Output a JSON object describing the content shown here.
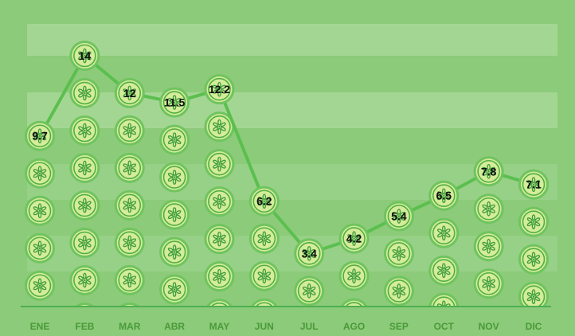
{
  "chart_data": {
    "type": "line",
    "categories": [
      "ENE",
      "FEB",
      "MAR",
      "ABR",
      "MAY",
      "JUN",
      "JUL",
      "AGO",
      "SEP",
      "OCT",
      "NOV",
      "DIC"
    ],
    "values": [
      9.7,
      14,
      12,
      11.5,
      12.2,
      6.2,
      3.4,
      4.2,
      5.4,
      6.5,
      7.8,
      7.1
    ],
    "data_labels": [
      "9.7",
      "14",
      "12",
      "11.5",
      "12.2",
      "6.2",
      "3.4",
      "4.2",
      "5.4",
      "6.5",
      "7.8",
      "7.1"
    ],
    "ylim": [
      0,
      16
    ],
    "marker": "cucumber-slice",
    "grid": true,
    "title": "",
    "xlabel": "",
    "ylabel": "",
    "colors": {
      "background": "#8ccb79",
      "band_light": "#a8d898",
      "band_mid": "#99d189",
      "line": "#5bbf4f",
      "slice_fill": "#d5ec9a",
      "slice_rim": "#6fc45f",
      "slice_ring": "#3fa83c",
      "seed": "#3a9b3a",
      "axis_label": "#4a9a3a",
      "baseline": "#4caf50"
    }
  }
}
